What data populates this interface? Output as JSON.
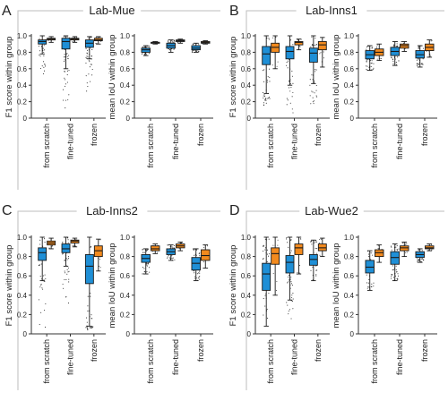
{
  "colors": {
    "blue": "#1f8fd6",
    "orange": "#f28a1e",
    "box_stroke": "#1a1a1a",
    "outlier": "#2b2b2b",
    "frame": "#bdbdbd"
  },
  "panels": [
    {
      "letter": "A",
      "title": "Lab-Mue"
    },
    {
      "letter": "B",
      "title": "Lab-Inns1"
    },
    {
      "letter": "C",
      "title": "Lab-Inns2"
    },
    {
      "letter": "D",
      "title": "Lab-Wue2"
    }
  ],
  "chart_data": [
    {
      "type": "box",
      "panel": "A",
      "title": "Lab-Mue",
      "categories": [
        "from scratch",
        "fine-tuned",
        "frozen"
      ],
      "series_colors": [
        "blue",
        "orange"
      ],
      "ylabel": "F1 score within group",
      "ylim": [
        0,
        1.0
      ],
      "yticks": [
        0,
        0.2,
        0.4,
        0.6,
        0.8,
        1.0
      ],
      "show_ylabel": true,
      "boxes": [
        [
          {
            "q1": 0.9,
            "med": 0.93,
            "q3": 0.95,
            "lo": 0.78,
            "hi": 1.0,
            "out": [
              0.4,
              0.78
            ]
          },
          {
            "q1": 0.95,
            "med": 0.96,
            "q3": 0.97,
            "lo": 0.92,
            "hi": 0.99,
            "out": []
          }
        ],
        [
          {
            "q1": 0.84,
            "med": 0.93,
            "q3": 0.97,
            "lo": 0.6,
            "hi": 1.0,
            "out": [
              0.0,
              0.6
            ]
          },
          {
            "q1": 0.95,
            "med": 0.96,
            "q3": 0.97,
            "lo": 0.92,
            "hi": 0.99,
            "out": []
          }
        ],
        [
          {
            "q1": 0.86,
            "med": 0.91,
            "q3": 0.95,
            "lo": 0.72,
            "hi": 0.99,
            "out": [
              0.3,
              0.72
            ]
          },
          {
            "q1": 0.94,
            "med": 0.95,
            "q3": 0.97,
            "lo": 0.9,
            "hi": 0.99,
            "out": []
          }
        ]
      ]
    },
    {
      "type": "box",
      "panel": "A",
      "categories": [
        "from scratch",
        "fine-tuned",
        "frozen"
      ],
      "series_colors": [
        "blue",
        "orange"
      ],
      "ylabel": "mean IoU within group",
      "ylim": [
        0,
        1.0
      ],
      "yticks": [
        0,
        0.2,
        0.4,
        0.6,
        0.8,
        1.0
      ],
      "show_ylabel": true,
      "boxes": [
        [
          {
            "q1": 0.8,
            "med": 0.83,
            "q3": 0.85,
            "lo": 0.76,
            "hi": 0.88,
            "out": []
          },
          {
            "q1": 0.91,
            "med": 0.92,
            "q3": 0.92,
            "lo": 0.9,
            "hi": 0.93,
            "out": []
          }
        ],
        [
          {
            "q1": 0.85,
            "med": 0.88,
            "q3": 0.91,
            "lo": 0.8,
            "hi": 0.95,
            "out": []
          },
          {
            "q1": 0.93,
            "med": 0.94,
            "q3": 0.95,
            "lo": 0.91,
            "hi": 0.96,
            "out": []
          }
        ],
        [
          {
            "q1": 0.83,
            "med": 0.85,
            "q3": 0.88,
            "lo": 0.8,
            "hi": 0.91,
            "out": []
          },
          {
            "q1": 0.91,
            "med": 0.92,
            "q3": 0.93,
            "lo": 0.9,
            "hi": 0.94,
            "out": []
          }
        ]
      ]
    },
    {
      "type": "box",
      "panel": "B",
      "title": "Lab-Inns1",
      "categories": [
        "from scratch",
        "fine-tuned",
        "frozen"
      ],
      "series_colors": [
        "blue",
        "orange"
      ],
      "ylabel": "F1 score within group",
      "ylim": [
        0,
        1.0
      ],
      "yticks": [
        0,
        0.2,
        0.4,
        0.6,
        0.8,
        1.0
      ],
      "show_ylabel": true,
      "boxes": [
        [
          {
            "q1": 0.65,
            "med": 0.78,
            "q3": 0.87,
            "lo": 0.3,
            "hi": 1.0,
            "out": [
              0.05,
              0.3
            ]
          },
          {
            "q1": 0.8,
            "med": 0.86,
            "q3": 0.91,
            "lo": 0.6,
            "hi": 1.0,
            "out": [
              0.3
            ]
          }
        ],
        [
          {
            "q1": 0.72,
            "med": 0.81,
            "q3": 0.87,
            "lo": 0.4,
            "hi": 1.0,
            "out": [
              0.05,
              0.4
            ]
          },
          {
            "q1": 0.89,
            "med": 0.92,
            "q3": 0.93,
            "lo": 0.83,
            "hi": 0.96,
            "out": []
          }
        ],
        [
          {
            "q1": 0.68,
            "med": 0.79,
            "q3": 0.85,
            "lo": 0.42,
            "hi": 1.0,
            "out": [
              0.08,
              0.42
            ]
          },
          {
            "q1": 0.83,
            "med": 0.89,
            "q3": 0.93,
            "lo": 0.62,
            "hi": 0.98,
            "out": []
          }
        ]
      ]
    },
    {
      "type": "box",
      "panel": "B",
      "categories": [
        "from scratch",
        "fine-tuned",
        "frozen"
      ],
      "series_colors": [
        "blue",
        "orange"
      ],
      "ylabel": "mean IoU within group",
      "ylim": [
        0,
        1.0
      ],
      "yticks": [
        0,
        0.2,
        0.4,
        0.6,
        0.8,
        1.0
      ],
      "show_ylabel": true,
      "boxes": [
        [
          {
            "q1": 0.72,
            "med": 0.77,
            "q3": 0.82,
            "lo": 0.58,
            "hi": 0.88,
            "out": []
          },
          {
            "q1": 0.76,
            "med": 0.8,
            "q3": 0.84,
            "lo": 0.7,
            "hi": 0.9,
            "out": []
          }
        ],
        [
          {
            "q1": 0.76,
            "med": 0.81,
            "q3": 0.86,
            "lo": 0.64,
            "hi": 0.93,
            "out": []
          },
          {
            "q1": 0.85,
            "med": 0.88,
            "q3": 0.9,
            "lo": 0.81,
            "hi": 0.93,
            "out": []
          }
        ],
        [
          {
            "q1": 0.73,
            "med": 0.77,
            "q3": 0.82,
            "lo": 0.62,
            "hi": 0.88,
            "out": []
          },
          {
            "q1": 0.82,
            "med": 0.86,
            "q3": 0.9,
            "lo": 0.74,
            "hi": 0.95,
            "out": []
          }
        ]
      ]
    },
    {
      "type": "box",
      "panel": "C",
      "title": "Lab-Inns2",
      "categories": [
        "from scratch",
        "fine-tuned",
        "frozen"
      ],
      "series_colors": [
        "blue",
        "orange"
      ],
      "ylabel": "F1 score within group",
      "ylim": [
        0,
        1.0
      ],
      "yticks": [
        0,
        0.2,
        0.4,
        0.6,
        0.8,
        1.0
      ],
      "show_ylabel": true,
      "boxes": [
        [
          {
            "q1": 0.76,
            "med": 0.84,
            "q3": 0.89,
            "lo": 0.55,
            "hi": 1.0,
            "out": [
              0.05,
              0.55
            ]
          },
          {
            "q1": 0.92,
            "med": 0.94,
            "q3": 0.96,
            "lo": 0.88,
            "hi": 0.99,
            "out": []
          }
        ],
        [
          {
            "q1": 0.84,
            "med": 0.88,
            "q3": 0.93,
            "lo": 0.7,
            "hi": 1.0,
            "out": [
              0.25,
              0.7
            ]
          },
          {
            "q1": 0.94,
            "med": 0.96,
            "q3": 0.97,
            "lo": 0.9,
            "hi": 0.99,
            "out": []
          }
        ],
        [
          {
            "q1": 0.52,
            "med": 0.7,
            "q3": 0.82,
            "lo": 0.08,
            "hi": 1.0,
            "out": [
              0.02
            ]
          },
          {
            "q1": 0.8,
            "med": 0.86,
            "q3": 0.91,
            "lo": 0.65,
            "hi": 0.98,
            "out": []
          }
        ]
      ]
    },
    {
      "type": "box",
      "panel": "C",
      "categories": [
        "from scratch",
        "fine-tuned",
        "frozen"
      ],
      "series_colors": [
        "blue",
        "orange"
      ],
      "ylabel": "mean IoU within group",
      "ylim": [
        0,
        1.0
      ],
      "yticks": [
        0,
        0.2,
        0.4,
        0.6,
        0.8,
        1.0
      ],
      "show_ylabel": true,
      "boxes": [
        [
          {
            "q1": 0.74,
            "med": 0.78,
            "q3": 0.82,
            "lo": 0.62,
            "hi": 0.88,
            "out": []
          },
          {
            "q1": 0.86,
            "med": 0.88,
            "q3": 0.91,
            "lo": 0.83,
            "hi": 0.93,
            "out": []
          }
        ],
        [
          {
            "q1": 0.82,
            "med": 0.85,
            "q3": 0.88,
            "lo": 0.76,
            "hi": 0.92,
            "out": []
          },
          {
            "q1": 0.89,
            "med": 0.91,
            "q3": 0.93,
            "lo": 0.86,
            "hi": 0.95,
            "out": []
          }
        ],
        [
          {
            "q1": 0.66,
            "med": 0.73,
            "q3": 0.79,
            "lo": 0.55,
            "hi": 0.88,
            "out": []
          },
          {
            "q1": 0.76,
            "med": 0.81,
            "q3": 0.87,
            "lo": 0.68,
            "hi": 0.92,
            "out": []
          }
        ]
      ]
    },
    {
      "type": "box",
      "panel": "D",
      "title": "Lab-Wue2",
      "categories": [
        "from scratch",
        "fine-tuned",
        "frozen"
      ],
      "series_colors": [
        "blue",
        "orange"
      ],
      "ylabel": "F1 score within group",
      "ylim": [
        0,
        1.0
      ],
      "yticks": [
        0,
        0.2,
        0.4,
        0.6,
        0.8,
        1.0
      ],
      "show_ylabel": true,
      "boxes": [
        [
          {
            "q1": 0.45,
            "med": 0.62,
            "q3": 0.73,
            "lo": 0.08,
            "hi": 1.0,
            "out": []
          },
          {
            "q1": 0.72,
            "med": 0.83,
            "q3": 0.89,
            "lo": 0.4,
            "hi": 1.0,
            "out": []
          }
        ],
        [
          {
            "q1": 0.63,
            "med": 0.74,
            "q3": 0.81,
            "lo": 0.35,
            "hi": 1.0,
            "out": [
              0.05
            ]
          },
          {
            "q1": 0.82,
            "med": 0.89,
            "q3": 0.93,
            "lo": 0.62,
            "hi": 1.0,
            "out": []
          }
        ],
        [
          {
            "q1": 0.71,
            "med": 0.77,
            "q3": 0.82,
            "lo": 0.55,
            "hi": 0.97,
            "out": []
          },
          {
            "q1": 0.86,
            "med": 0.89,
            "q3": 0.93,
            "lo": 0.8,
            "hi": 0.99,
            "out": []
          }
        ]
      ]
    },
    {
      "type": "box",
      "panel": "D",
      "categories": [
        "from scratch",
        "fine-tuned",
        "frozen"
      ],
      "series_colors": [
        "blue",
        "orange"
      ],
      "ylabel": "mean IoU within group",
      "ylim": [
        0,
        1.0
      ],
      "yticks": [
        0,
        0.2,
        0.4,
        0.6,
        0.8,
        1.0
      ],
      "show_ylabel": true,
      "boxes": [
        [
          {
            "q1": 0.63,
            "med": 0.69,
            "q3": 0.76,
            "lo": 0.45,
            "hi": 0.86,
            "out": []
          },
          {
            "q1": 0.8,
            "med": 0.84,
            "q3": 0.87,
            "lo": 0.74,
            "hi": 0.92,
            "out": []
          }
        ],
        [
          {
            "q1": 0.72,
            "med": 0.79,
            "q3": 0.85,
            "lo": 0.55,
            "hi": 0.93,
            "out": []
          },
          {
            "q1": 0.86,
            "med": 0.89,
            "q3": 0.91,
            "lo": 0.8,
            "hi": 0.95,
            "out": []
          }
        ],
        [
          {
            "q1": 0.79,
            "med": 0.82,
            "q3": 0.85,
            "lo": 0.74,
            "hi": 0.88,
            "out": []
          },
          {
            "q1": 0.88,
            "med": 0.89,
            "q3": 0.91,
            "lo": 0.86,
            "hi": 0.93,
            "out": []
          }
        ]
      ]
    }
  ]
}
